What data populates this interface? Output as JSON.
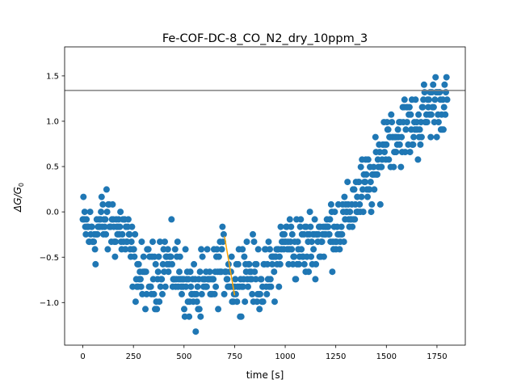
{
  "chart_data": {
    "type": "scatter",
    "title": "Fe-COF-DC-8_CO_N2_dry_10ppm_3",
    "xlabel": "time [s]",
    "ylabel": "ΔG/G",
    "ylabel_subscript": "0",
    "xlim": [
      -90,
      1890
    ],
    "ylim": [
      -1.47,
      1.82
    ],
    "xticks": [
      {
        "value": 0,
        "label": "0"
      },
      {
        "value": 250,
        "label": "250"
      },
      {
        "value": 500,
        "label": "500"
      },
      {
        "value": 750,
        "label": "750"
      },
      {
        "value": 1000,
        "label": "1000"
      },
      {
        "value": 1250,
        "label": "1250"
      },
      {
        "value": 1500,
        "label": "1500"
      },
      {
        "value": 1750,
        "label": "1750"
      }
    ],
    "yticks": [
      {
        "value": -1.0,
        "label": "−1.0"
      },
      {
        "value": -0.5,
        "label": "−0.5"
      },
      {
        "value": 0.0,
        "label": "0.0"
      },
      {
        "value": 0.5,
        "label": "0.5"
      },
      {
        "value": 1.0,
        "label": "1.0"
      },
      {
        "value": 1.5,
        "label": "1.5"
      }
    ],
    "grid": false,
    "legend": "none",
    "threshold_line": {
      "y": 1.34,
      "color": "#808080"
    },
    "fit_line": {
      "x": [
        700,
        750
      ],
      "y": [
        -0.27,
        -0.92
      ],
      "color": "#ffa500"
    },
    "series": [
      {
        "color": "#1f77b4",
        "points_step_seconds": 3,
        "trend": [
          [
            0,
            -0.15
          ],
          [
            50,
            -0.25
          ],
          [
            100,
            -0.1
          ],
          [
            150,
            -0.15
          ],
          [
            200,
            -0.2
          ],
          [
            250,
            -0.55
          ],
          [
            300,
            -0.75
          ],
          [
            350,
            -0.7
          ],
          [
            400,
            -0.55
          ],
          [
            450,
            -0.6
          ],
          [
            500,
            -0.75
          ],
          [
            550,
            -0.95
          ],
          [
            600,
            -0.85
          ],
          [
            650,
            -0.75
          ],
          [
            700,
            -0.5
          ],
          [
            750,
            -0.8
          ],
          [
            800,
            -0.6
          ],
          [
            850,
            -0.7
          ],
          [
            900,
            -0.75
          ],
          [
            950,
            -0.6
          ],
          [
            1000,
            -0.3
          ],
          [
            1050,
            -0.4
          ],
          [
            1100,
            -0.4
          ],
          [
            1150,
            -0.3
          ],
          [
            1200,
            -0.25
          ],
          [
            1250,
            -0.15
          ],
          [
            1300,
            -0.1
          ],
          [
            1350,
            0.15
          ],
          [
            1400,
            0.25
          ],
          [
            1450,
            0.4
          ],
          [
            1500,
            0.85
          ],
          [
            1550,
            0.85
          ],
          [
            1600,
            0.95
          ],
          [
            1650,
            0.95
          ],
          [
            1700,
            1.1
          ],
          [
            1750,
            1.25
          ],
          [
            1800,
            1.15
          ]
        ],
        "spread": 0.18
      }
    ]
  }
}
